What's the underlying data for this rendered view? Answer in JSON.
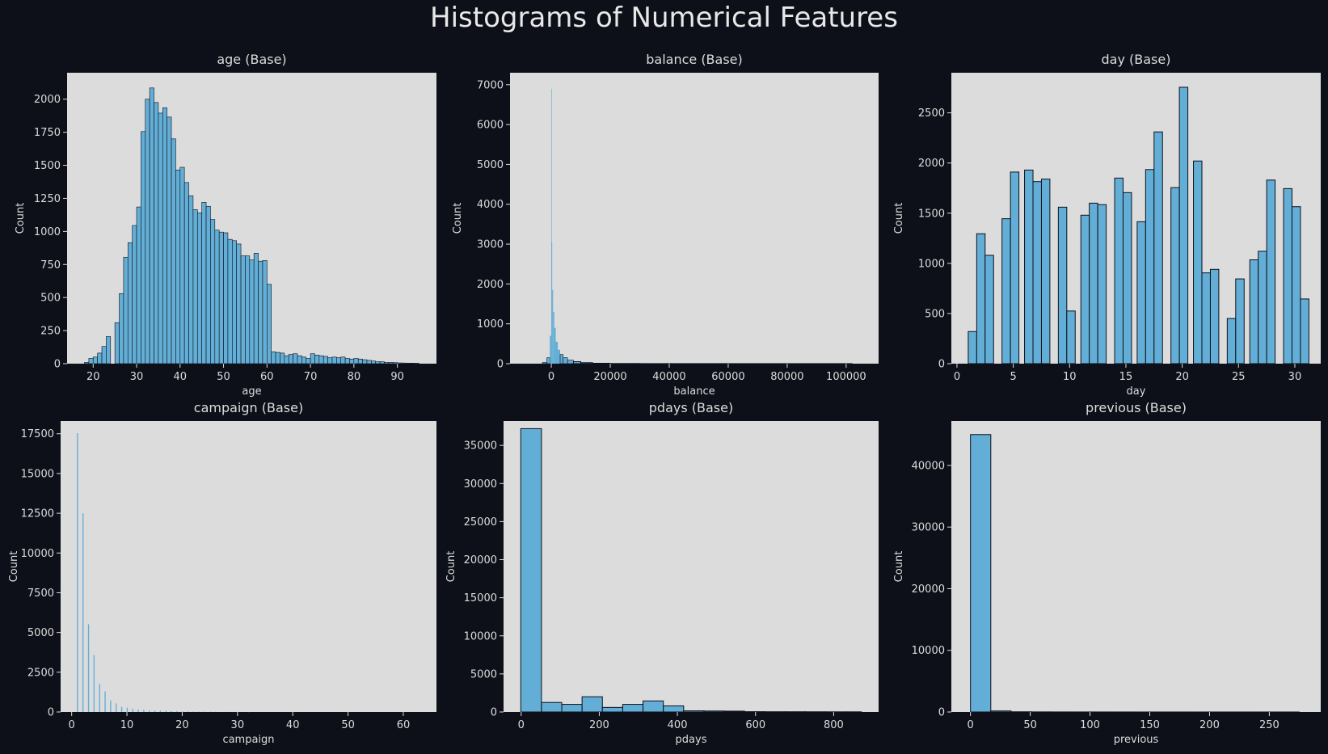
{
  "figure_title": "Histograms of Numerical Features",
  "colors": {
    "background": "#0d1019",
    "plot_bg": "#dcdcdc",
    "bar": "#63aed6",
    "bar_edge": "#0d1019",
    "text": "#dcdcdc"
  },
  "chart_data": [
    {
      "type": "bar",
      "title": "age (Base)",
      "xlabel": "age",
      "ylabel": "Count",
      "xlim": [
        14,
        99
      ],
      "ylim": [
        0,
        2200
      ],
      "xticks": [
        20,
        30,
        40,
        50,
        60,
        70,
        80,
        90
      ],
      "yticks": [
        0,
        250,
        500,
        750,
        1000,
        1250,
        1500,
        1750,
        2000
      ],
      "bins": [
        {
          "x0": 18,
          "x1": 19,
          "y": 10
        },
        {
          "x0": 19,
          "x1": 20,
          "y": 40
        },
        {
          "x0": 20,
          "x1": 21,
          "y": 50
        },
        {
          "x0": 21,
          "x1": 22,
          "y": 80
        },
        {
          "x0": 22,
          "x1": 23,
          "y": 130
        },
        {
          "x0": 23,
          "x1": 24,
          "y": 205
        },
        {
          "x0": 25,
          "x1": 26,
          "y": 310
        },
        {
          "x0": 26,
          "x1": 27,
          "y": 530
        },
        {
          "x0": 27,
          "x1": 28,
          "y": 805
        },
        {
          "x0": 28,
          "x1": 29,
          "y": 915
        },
        {
          "x0": 29,
          "x1": 30,
          "y": 1045
        },
        {
          "x0": 30,
          "x1": 31,
          "y": 1185
        },
        {
          "x0": 31,
          "x1": 32,
          "y": 1755
        },
        {
          "x0": 32,
          "x1": 33,
          "y": 2000
        },
        {
          "x0": 33,
          "x1": 34,
          "y": 2085
        },
        {
          "x0": 34,
          "x1": 35,
          "y": 1975
        },
        {
          "x0": 35,
          "x1": 36,
          "y": 1895
        },
        {
          "x0": 36,
          "x1": 37,
          "y": 1935
        },
        {
          "x0": 37,
          "x1": 38,
          "y": 1865
        },
        {
          "x0": 38,
          "x1": 39,
          "y": 1700
        },
        {
          "x0": 39,
          "x1": 40,
          "y": 1465
        },
        {
          "x0": 40,
          "x1": 41,
          "y": 1485
        },
        {
          "x0": 41,
          "x1": 42,
          "y": 1370
        },
        {
          "x0": 42,
          "x1": 43,
          "y": 1270
        },
        {
          "x0": 43,
          "x1": 44,
          "y": 1165
        },
        {
          "x0": 44,
          "x1": 45,
          "y": 1140
        },
        {
          "x0": 45,
          "x1": 46,
          "y": 1220
        },
        {
          "x0": 46,
          "x1": 47,
          "y": 1190
        },
        {
          "x0": 47,
          "x1": 48,
          "y": 1090
        },
        {
          "x0": 48,
          "x1": 49,
          "y": 1010
        },
        {
          "x0": 49,
          "x1": 50,
          "y": 995
        },
        {
          "x0": 50,
          "x1": 51,
          "y": 990
        },
        {
          "x0": 51,
          "x1": 52,
          "y": 940
        },
        {
          "x0": 52,
          "x1": 53,
          "y": 930
        },
        {
          "x0": 53,
          "x1": 54,
          "y": 905
        },
        {
          "x0": 54,
          "x1": 55,
          "y": 815
        },
        {
          "x0": 55,
          "x1": 56,
          "y": 815
        },
        {
          "x0": 56,
          "x1": 57,
          "y": 785
        },
        {
          "x0": 57,
          "x1": 58,
          "y": 835
        },
        {
          "x0": 58,
          "x1": 59,
          "y": 775
        },
        {
          "x0": 59,
          "x1": 60,
          "y": 780
        },
        {
          "x0": 60,
          "x1": 61,
          "y": 600
        },
        {
          "x0": 61,
          "x1": 62,
          "y": 90
        },
        {
          "x0": 62,
          "x1": 63,
          "y": 85
        },
        {
          "x0": 63,
          "x1": 64,
          "y": 80
        },
        {
          "x0": 64,
          "x1": 65,
          "y": 60
        },
        {
          "x0": 65,
          "x1": 66,
          "y": 70
        },
        {
          "x0": 66,
          "x1": 67,
          "y": 75
        },
        {
          "x0": 67,
          "x1": 68,
          "y": 60
        },
        {
          "x0": 68,
          "x1": 69,
          "y": 50
        },
        {
          "x0": 69,
          "x1": 70,
          "y": 40
        },
        {
          "x0": 70,
          "x1": 71,
          "y": 75
        },
        {
          "x0": 71,
          "x1": 72,
          "y": 65
        },
        {
          "x0": 72,
          "x1": 73,
          "y": 60
        },
        {
          "x0": 73,
          "x1": 74,
          "y": 55
        },
        {
          "x0": 74,
          "x1": 75,
          "y": 45
        },
        {
          "x0": 75,
          "x1": 76,
          "y": 50
        },
        {
          "x0": 76,
          "x1": 77,
          "y": 45
        },
        {
          "x0": 77,
          "x1": 78,
          "y": 50
        },
        {
          "x0": 78,
          "x1": 79,
          "y": 40
        },
        {
          "x0": 79,
          "x1": 80,
          "y": 35
        },
        {
          "x0": 80,
          "x1": 81,
          "y": 40
        },
        {
          "x0": 81,
          "x1": 82,
          "y": 35
        },
        {
          "x0": 82,
          "x1": 83,
          "y": 30
        },
        {
          "x0": 83,
          "x1": 84,
          "y": 25
        },
        {
          "x0": 84,
          "x1": 85,
          "y": 20
        },
        {
          "x0": 85,
          "x1": 86,
          "y": 15
        },
        {
          "x0": 86,
          "x1": 87,
          "y": 15
        },
        {
          "x0": 87,
          "x1": 88,
          "y": 10
        },
        {
          "x0": 88,
          "x1": 89,
          "y": 10
        },
        {
          "x0": 89,
          "x1": 90,
          "y": 8
        },
        {
          "x0": 90,
          "x1": 91,
          "y": 6
        },
        {
          "x0": 91,
          "x1": 92,
          "y": 5
        },
        {
          "x0": 92,
          "x1": 93,
          "y": 4
        },
        {
          "x0": 93,
          "x1": 94,
          "y": 4
        },
        {
          "x0": 94,
          "x1": 95,
          "y": 3
        }
      ]
    },
    {
      "type": "bar",
      "title": "balance (Base)",
      "xlabel": "balance",
      "ylabel": "Count",
      "xlim": [
        -14000,
        111000
      ],
      "ylim": [
        0,
        7300
      ],
      "xticks": [
        0,
        20000,
        40000,
        60000,
        80000,
        100000
      ],
      "yticks": [
        0,
        1000,
        2000,
        3000,
        4000,
        5000,
        6000,
        7000
      ],
      "bins": [
        {
          "x0": -3000,
          "x1": -1500,
          "y": 30
        },
        {
          "x0": -1500,
          "x1": -500,
          "y": 150
        },
        {
          "x0": -500,
          "x1": 0,
          "y": 700
        },
        {
          "x0": 0,
          "x1": 100,
          "y": 6900
        },
        {
          "x0": 100,
          "x1": 300,
          "y": 3050
        },
        {
          "x0": 300,
          "x1": 600,
          "y": 1850
        },
        {
          "x0": 600,
          "x1": 1000,
          "y": 1300
        },
        {
          "x0": 1000,
          "x1": 1500,
          "y": 900
        },
        {
          "x0": 1500,
          "x1": 2200,
          "y": 550
        },
        {
          "x0": 2200,
          "x1": 3000,
          "y": 350
        },
        {
          "x0": 3000,
          "x1": 4000,
          "y": 230
        },
        {
          "x0": 4000,
          "x1": 5500,
          "y": 150
        },
        {
          "x0": 5500,
          "x1": 7500,
          "y": 90
        },
        {
          "x0": 7500,
          "x1": 10000,
          "y": 50
        },
        {
          "x0": 10000,
          "x1": 14000,
          "y": 25
        },
        {
          "x0": 14000,
          "x1": 20000,
          "y": 10
        },
        {
          "x0": 20000,
          "x1": 30000,
          "y": 4
        },
        {
          "x0": 30000,
          "x1": 60000,
          "y": 2
        },
        {
          "x0": 60000,
          "x1": 102000,
          "y": 1
        }
      ]
    },
    {
      "type": "bar",
      "title": "day (Base)",
      "xlabel": "day",
      "ylabel": "Count",
      "xlim": [
        -0.5,
        32.3
      ],
      "ylim": [
        0,
        2900
      ],
      "xticks": [
        0,
        5,
        10,
        15,
        20,
        25,
        30
      ],
      "yticks": [
        0,
        500,
        1000,
        1500,
        2000,
        2500
      ],
      "bins": [
        {
          "x0": 1,
          "x1": 1.75,
          "y": 320
        },
        {
          "x0": 1.75,
          "x1": 2.5,
          "y": 1295
        },
        {
          "x0": 2.5,
          "x1": 3.25,
          "y": 1080
        },
        {
          "x0": 4,
          "x1": 4.75,
          "y": 1445
        },
        {
          "x0": 4.75,
          "x1": 5.5,
          "y": 1910
        },
        {
          "x0": 6,
          "x1": 6.75,
          "y": 1930
        },
        {
          "x0": 6.75,
          "x1": 7.5,
          "y": 1815
        },
        {
          "x0": 7.5,
          "x1": 8.25,
          "y": 1840
        },
        {
          "x0": 9,
          "x1": 9.75,
          "y": 1560
        },
        {
          "x0": 9.75,
          "x1": 10.5,
          "y": 525
        },
        {
          "x0": 11,
          "x1": 11.75,
          "y": 1480
        },
        {
          "x0": 11.75,
          "x1": 12.5,
          "y": 1600
        },
        {
          "x0": 12.5,
          "x1": 13.25,
          "y": 1585
        },
        {
          "x0": 14,
          "x1": 14.75,
          "y": 1850
        },
        {
          "x0": 14.75,
          "x1": 15.5,
          "y": 1705
        },
        {
          "x0": 16,
          "x1": 16.75,
          "y": 1415
        },
        {
          "x0": 16.75,
          "x1": 17.5,
          "y": 1935
        },
        {
          "x0": 17.5,
          "x1": 18.25,
          "y": 2310
        },
        {
          "x0": 19,
          "x1": 19.75,
          "y": 1755
        },
        {
          "x0": 19.75,
          "x1": 20.5,
          "y": 2755
        },
        {
          "x0": 21,
          "x1": 21.75,
          "y": 2020
        },
        {
          "x0": 21.75,
          "x1": 22.5,
          "y": 905
        },
        {
          "x0": 22.5,
          "x1": 23.25,
          "y": 940
        },
        {
          "x0": 24,
          "x1": 24.75,
          "y": 450
        },
        {
          "x0": 24.75,
          "x1": 25.5,
          "y": 845
        },
        {
          "x0": 26,
          "x1": 26.75,
          "y": 1035
        },
        {
          "x0": 26.75,
          "x1": 27.5,
          "y": 1120
        },
        {
          "x0": 27.5,
          "x1": 28.25,
          "y": 1830
        },
        {
          "x0": 29,
          "x1": 29.75,
          "y": 1745
        },
        {
          "x0": 29.75,
          "x1": 30.5,
          "y": 1565
        },
        {
          "x0": 30.5,
          "x1": 31.25,
          "y": 645
        }
      ]
    },
    {
      "type": "bar",
      "title": "campaign (Base)",
      "xlabel": "campaign",
      "ylabel": "Count",
      "xlim": [
        -2,
        66
      ],
      "ylim": [
        0,
        18300
      ],
      "xticks": [
        0,
        10,
        20,
        30,
        40,
        50,
        60
      ],
      "yticks": [
        0,
        2500,
        5000,
        7500,
        10000,
        12500,
        15000,
        17500
      ],
      "bins": [
        {
          "x0": 0.95,
          "x1": 1.15,
          "y": 17540
        },
        {
          "x0": 1.95,
          "x1": 2.15,
          "y": 12500
        },
        {
          "x0": 2.95,
          "x1": 3.15,
          "y": 5520
        },
        {
          "x0": 3.95,
          "x1": 4.15,
          "y": 3570
        },
        {
          "x0": 4.95,
          "x1": 5.15,
          "y": 1760
        },
        {
          "x0": 5.95,
          "x1": 6.15,
          "y": 1290
        },
        {
          "x0": 6.95,
          "x1": 7.15,
          "y": 730
        },
        {
          "x0": 7.95,
          "x1": 8.15,
          "y": 540
        },
        {
          "x0": 8.95,
          "x1": 9.15,
          "y": 330
        },
        {
          "x0": 9.95,
          "x1": 10.15,
          "y": 270
        },
        {
          "x0": 10.95,
          "x1": 11.15,
          "y": 200
        },
        {
          "x0": 11.95,
          "x1": 12.15,
          "y": 155
        },
        {
          "x0": 12.95,
          "x1": 13.15,
          "y": 135
        },
        {
          "x0": 13.95,
          "x1": 14.15,
          "y": 95
        },
        {
          "x0": 14.95,
          "x1": 15.15,
          "y": 85
        },
        {
          "x0": 15.95,
          "x1": 16.15,
          "y": 80
        },
        {
          "x0": 16.95,
          "x1": 17.15,
          "y": 70
        },
        {
          "x0": 17.95,
          "x1": 18.15,
          "y": 50
        },
        {
          "x0": 18.95,
          "x1": 19.15,
          "y": 45
        },
        {
          "x0": 19.95,
          "x1": 20.15,
          "y": 40
        },
        {
          "x0": 20.95,
          "x1": 21.15,
          "y": 35
        },
        {
          "x0": 21.95,
          "x1": 22.15,
          "y": 25
        },
        {
          "x0": 22.95,
          "x1": 23.15,
          "y": 22
        },
        {
          "x0": 23.95,
          "x1": 24.15,
          "y": 20
        },
        {
          "x0": 24.95,
          "x1": 25.15,
          "y": 18
        },
        {
          "x0": 25.95,
          "x1": 26.15,
          "y": 15
        },
        {
          "x0": 27.95,
          "x1": 28.15,
          "y": 12
        },
        {
          "x0": 28.95,
          "x1": 29.15,
          "y": 10
        },
        {
          "x0": 29.95,
          "x1": 30.15,
          "y": 8
        },
        {
          "x0": 31.95,
          "x1": 32.15,
          "y": 6
        }
      ]
    },
    {
      "type": "bar",
      "title": "pdays (Base)",
      "xlabel": "pdays",
      "ylabel": "Count",
      "xlim": [
        -45,
        915
      ],
      "ylim": [
        0,
        38200
      ],
      "xticks": [
        0,
        200,
        400,
        600,
        800
      ],
      "yticks": [
        0,
        5000,
        10000,
        15000,
        20000,
        25000,
        30000,
        35000
      ],
      "bins": [
        {
          "x0": -1,
          "x1": 52,
          "y": 37200
        },
        {
          "x0": 52,
          "x1": 104,
          "y": 1250
        },
        {
          "x0": 104,
          "x1": 156,
          "y": 1000
        },
        {
          "x0": 156,
          "x1": 208,
          "y": 2000
        },
        {
          "x0": 208,
          "x1": 260,
          "y": 600
        },
        {
          "x0": 260,
          "x1": 312,
          "y": 1000
        },
        {
          "x0": 312,
          "x1": 364,
          "y": 1450
        },
        {
          "x0": 364,
          "x1": 416,
          "y": 800
        },
        {
          "x0": 416,
          "x1": 468,
          "y": 150
        },
        {
          "x0": 468,
          "x1": 520,
          "y": 130
        },
        {
          "x0": 520,
          "x1": 572,
          "y": 110
        },
        {
          "x0": 572,
          "x1": 624,
          "y": 40
        },
        {
          "x0": 624,
          "x1": 676,
          "y": 30
        },
        {
          "x0": 676,
          "x1": 728,
          "y": 30
        },
        {
          "x0": 728,
          "x1": 780,
          "y": 25
        },
        {
          "x0": 780,
          "x1": 832,
          "y": 20
        },
        {
          "x0": 832,
          "x1": 871,
          "y": 20
        }
      ]
    },
    {
      "type": "bar",
      "title": "previous (Base)",
      "xlabel": "previous",
      "ylabel": "Count",
      "xlim": [
        -16,
        293
      ],
      "ylim": [
        0,
        47200
      ],
      "xticks": [
        0,
        50,
        100,
        150,
        200,
        250
      ],
      "yticks": [
        0,
        10000,
        20000,
        30000,
        40000
      ],
      "bins": [
        {
          "x0": 0,
          "x1": 17,
          "y": 45000
        },
        {
          "x0": 17,
          "x1": 34,
          "y": 170
        },
        {
          "x0": 34,
          "x1": 51,
          "y": 30
        },
        {
          "x0": 51,
          "x1": 68,
          "y": 15
        },
        {
          "x0": 68,
          "x1": 85,
          "y": 10
        },
        {
          "x0": 85,
          "x1": 102,
          "y": 8
        },
        {
          "x0": 102,
          "x1": 119,
          "y": 6
        },
        {
          "x0": 119,
          "x1": 136,
          "y": 5
        },
        {
          "x0": 136,
          "x1": 153,
          "y": 4
        },
        {
          "x0": 153,
          "x1": 170,
          "y": 3
        },
        {
          "x0": 170,
          "x1": 187,
          "y": 3
        },
        {
          "x0": 187,
          "x1": 204,
          "y": 2
        },
        {
          "x0": 204,
          "x1": 221,
          "y": 2
        },
        {
          "x0": 221,
          "x1": 238,
          "y": 2
        },
        {
          "x0": 238,
          "x1": 255,
          "y": 1
        },
        {
          "x0": 255,
          "x1": 275,
          "y": 1
        }
      ]
    }
  ]
}
